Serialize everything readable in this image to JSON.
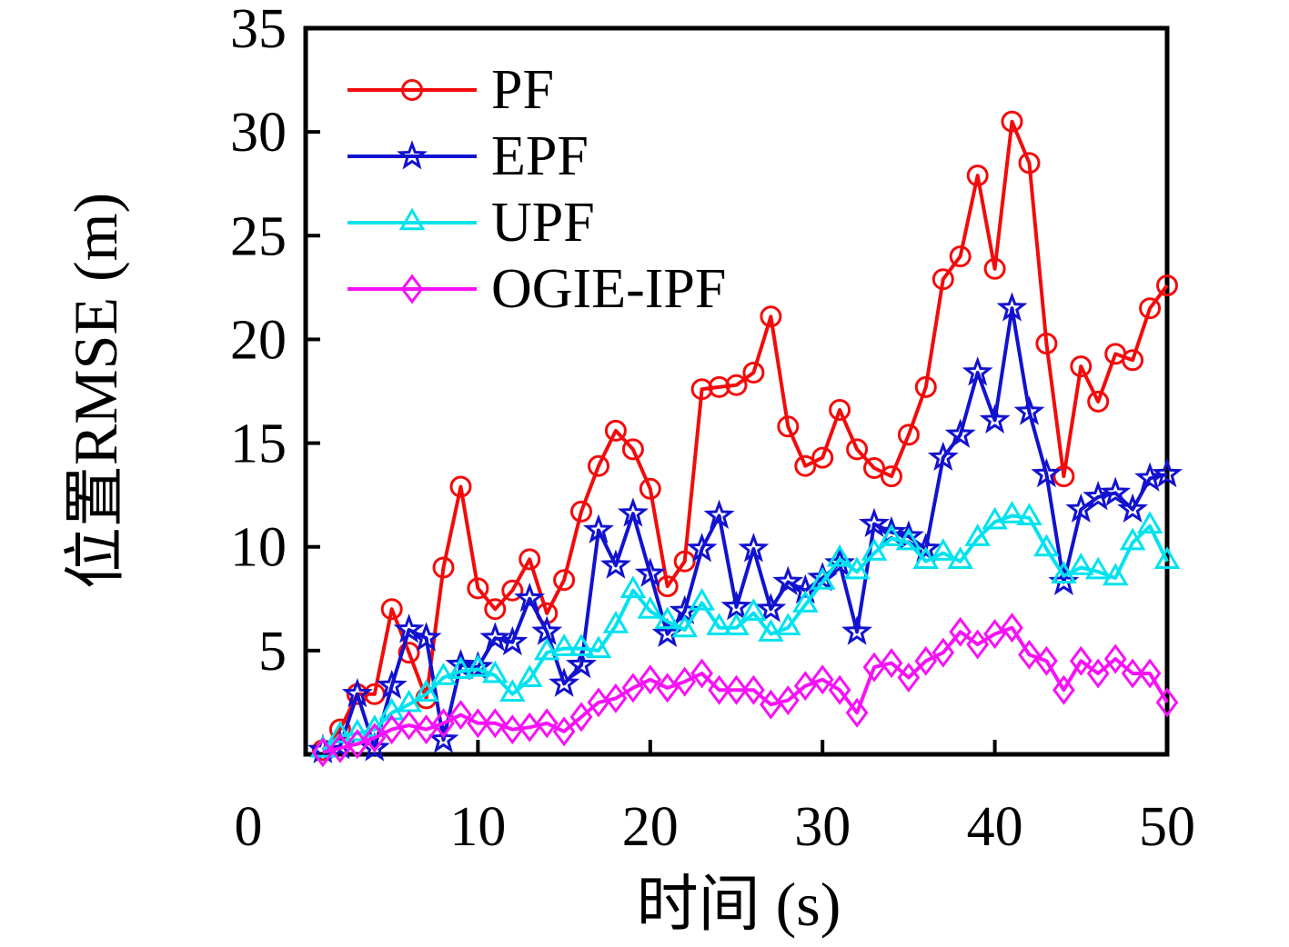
{
  "figure": {
    "background": "#ffffff",
    "axis_color": "#000000"
  },
  "chart_data": {
    "type": "line",
    "title": "",
    "xlabel": "时间 (s)",
    "ylabel": "位置RMSE (m)",
    "xlim": [
      0,
      50
    ],
    "ylim": [
      0,
      35
    ],
    "x_ticks": [
      0,
      10,
      20,
      30,
      40,
      50
    ],
    "y_ticks": [
      5,
      10,
      15,
      20,
      25,
      30,
      35
    ],
    "grid": false,
    "legend_position": "upper-left-inside",
    "x": [
      1,
      2,
      3,
      4,
      5,
      6,
      7,
      8,
      9,
      10,
      11,
      12,
      13,
      14,
      15,
      16,
      17,
      18,
      19,
      20,
      21,
      22,
      23,
      24,
      25,
      26,
      27,
      28,
      29,
      30,
      31,
      32,
      33,
      34,
      35,
      36,
      37,
      38,
      39,
      40,
      41,
      42,
      43,
      44,
      45,
      46,
      47,
      48,
      49,
      50
    ],
    "series": [
      {
        "name": "PF",
        "color": "#f30b0b",
        "marker": "circle",
        "values": [
          0.2,
          1.2,
          2.9,
          2.9,
          7.0,
          4.9,
          2.7,
          9.0,
          12.9,
          8.0,
          7.0,
          7.9,
          9.4,
          6.8,
          8.4,
          11.7,
          13.9,
          15.6,
          14.7,
          12.8,
          8.1,
          9.3,
          17.6,
          17.7,
          17.8,
          18.4,
          21.1,
          15.8,
          13.9,
          14.3,
          16.6,
          14.7,
          13.8,
          13.4,
          15.4,
          17.7,
          22.9,
          24.0,
          27.9,
          23.4,
          30.5,
          28.5,
          19.8,
          13.4,
          18.7,
          17.0,
          19.3,
          19.0,
          21.5,
          22.6
        ]
      },
      {
        "name": "EPF",
        "color": "#1212cf",
        "marker": "star",
        "values": [
          0.2,
          0.4,
          2.9,
          0.3,
          3.3,
          6.0,
          5.6,
          0.7,
          4.3,
          4.2,
          5.6,
          5.4,
          7.5,
          5.9,
          3.4,
          4.3,
          10.8,
          9.1,
          11.6,
          8.7,
          5.8,
          6.9,
          9.9,
          11.5,
          7.1,
          9.9,
          7.0,
          8.3,
          7.9,
          8.5,
          9.2,
          5.9,
          11.1,
          10.7,
          10.5,
          9.9,
          14.3,
          15.4,
          18.4,
          16.1,
          21.5,
          16.5,
          13.5,
          8.3,
          11.8,
          12.4,
          12.6,
          11.8,
          13.3,
          13.5
        ]
      },
      {
        "name": "UPF",
        "color": "#00e2ef",
        "marker": "triangle-up",
        "values": [
          0.2,
          0.9,
          1.0,
          1.2,
          2.0,
          2.4,
          2.9,
          3.7,
          4.0,
          4.1,
          3.8,
          2.9,
          3.6,
          4.9,
          5.1,
          5.1,
          5.0,
          6.2,
          7.9,
          6.9,
          6.4,
          6.0,
          7.3,
          6.1,
          6.1,
          6.8,
          5.8,
          6.1,
          7.2,
          8.3,
          9.4,
          8.8,
          9.7,
          10.4,
          10.2,
          9.3,
          9.7,
          9.3,
          10.4,
          11.2,
          11.5,
          11.4,
          9.9,
          8.6,
          9.0,
          8.8,
          8.5,
          10.2,
          11.0,
          9.3
        ]
      },
      {
        "name": "OGIE-IPF",
        "color": "#f711f7",
        "marker": "diamond",
        "values": [
          0.1,
          0.3,
          0.5,
          0.8,
          1.2,
          1.4,
          1.2,
          1.5,
          1.9,
          1.5,
          1.5,
          1.2,
          1.3,
          1.5,
          1.1,
          1.8,
          2.5,
          2.7,
          3.2,
          3.6,
          3.2,
          3.5,
          3.9,
          3.1,
          3.1,
          3.1,
          2.4,
          2.6,
          3.3,
          3.6,
          3.1,
          2.0,
          4.2,
          4.4,
          3.7,
          4.5,
          4.9,
          5.9,
          5.3,
          5.8,
          6.1,
          4.8,
          4.5,
          3.1,
          4.5,
          3.9,
          4.6,
          3.9,
          3.9,
          2.5
        ]
      }
    ]
  }
}
